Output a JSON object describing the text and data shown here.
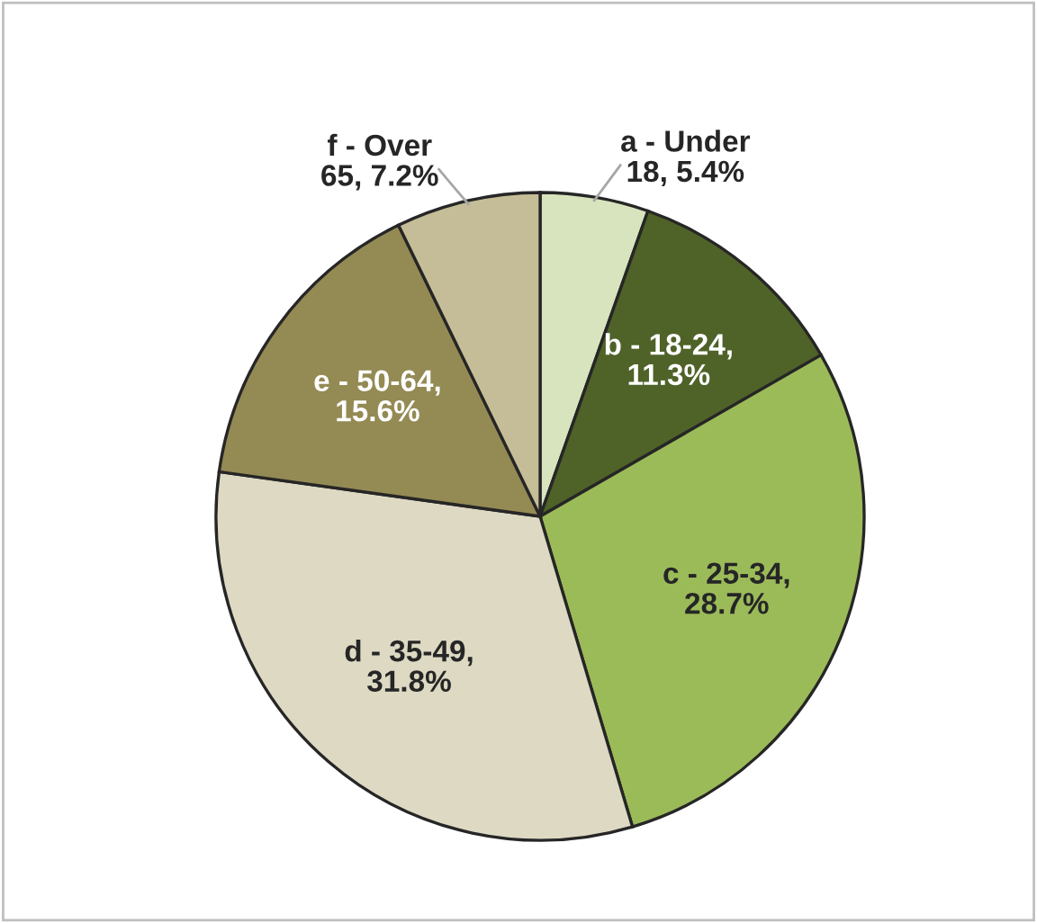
{
  "chart_data": {
    "type": "pie",
    "categories": [
      "a - Under 18",
      "b - 18-24",
      "c - 25-34",
      "d - 35-49",
      "e - 50-64",
      "f - Over 65"
    ],
    "values": [
      5.4,
      11.3,
      28.7,
      31.8,
      15.6,
      7.2
    ],
    "colors": [
      "#d7e4bd",
      "#4f6228",
      "#9bbb59",
      "#ddd9c3",
      "#948a54",
      "#c4bd97"
    ],
    "value_labels": [
      ", 5.4%",
      ", 11.3%",
      ", 28.7%",
      ", 31.8%",
      ", 15.6%",
      ", 7.2%"
    ],
    "legend": false
  }
}
